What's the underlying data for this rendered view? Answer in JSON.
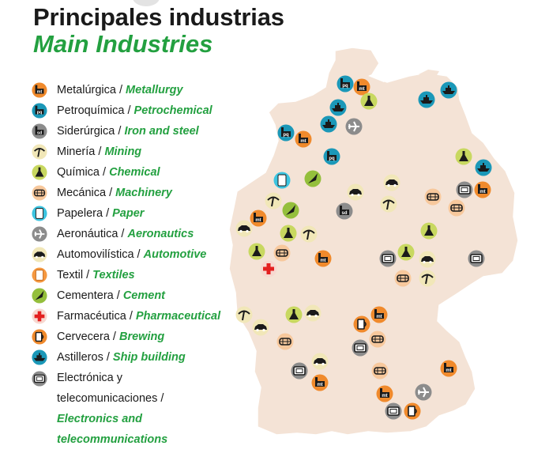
{
  "title": "Principales industrias",
  "subtitle": "Main Industries",
  "colors": {
    "accent_green": "#23a040",
    "map_fill": "#f4e3d6",
    "map_border": "#ffffff"
  },
  "legend": [
    {
      "id": "metallurgy",
      "es": "Metalúrgica",
      "en": "Metallurgy",
      "icon": "mt",
      "circle": "#f08a2c"
    },
    {
      "id": "petrochemical",
      "es": "Petroquímica",
      "en": "Petrochemical",
      "icon": "pq",
      "circle": "#1b98b8"
    },
    {
      "id": "iron",
      "es": "Siderúrgica",
      "en": "Iron and steel",
      "icon": "sd",
      "circle": "#8c8c8c"
    },
    {
      "id": "mining",
      "es": "Minería",
      "en": "Mining",
      "icon": "pick",
      "circle": "#f1e7b8"
    },
    {
      "id": "chemical",
      "es": "Química",
      "en": "Chemical",
      "icon": "flask",
      "circle": "#c8d860"
    },
    {
      "id": "machinery",
      "es": "Mecánica",
      "en": "Machinery",
      "icon": "gear",
      "circle": "#f7c89c"
    },
    {
      "id": "paper",
      "es": "Papelera",
      "en": "Paper",
      "icon": "paper",
      "circle": "#3cc4e0"
    },
    {
      "id": "aero",
      "es": "Aeronáutica",
      "en": "Aeronautics",
      "icon": "plane",
      "circle": "#8c8c8c"
    },
    {
      "id": "auto",
      "es": "Automovilística",
      "en": "Automotive",
      "icon": "car",
      "circle": "#f1e7b8"
    },
    {
      "id": "textile",
      "es": "Textil",
      "en": "Textiles",
      "icon": "textile",
      "circle": "#f59840"
    },
    {
      "id": "cement",
      "es": "Cementera",
      "en": "Cement",
      "icon": "trowel",
      "circle": "#94bf3c"
    },
    {
      "id": "pharma",
      "es": "Farmacéutica",
      "en": "Pharmaceutical",
      "icon": "cross",
      "circle": "#f7d8d0"
    },
    {
      "id": "brewing",
      "es": "Cervecera",
      "en": "Brewing",
      "icon": "beer",
      "circle": "#f08a2c"
    },
    {
      "id": "ship",
      "es": "Astilleros",
      "en": "Ship building",
      "icon": "ship",
      "circle": "#1b98b8"
    },
    {
      "id": "electronics",
      "es": "Electrónica y",
      "es2": "telecomunicaciones /",
      "en": "Electronics and",
      "en2": "telecommunications",
      "icon": "tv",
      "circle": "#8c8c8c"
    }
  ],
  "map_icons": [
    {
      "type": "pq"
    },
    {
      "type": "mt"
    },
    {
      "type": "flask"
    },
    {
      "type": "ship"
    },
    {
      "type": "ship"
    },
    {
      "type": "ship"
    },
    {
      "type": "ship"
    },
    {
      "type": "plane"
    },
    {
      "type": "pq"
    },
    {
      "type": "mt"
    },
    {
      "type": "pq"
    },
    {
      "type": "flask"
    },
    {
      "type": "ship"
    },
    {
      "type": "paper"
    },
    {
      "type": "trowel"
    },
    {
      "type": "car"
    },
    {
      "type": "car"
    },
    {
      "type": "gear"
    },
    {
      "type": "tv"
    },
    {
      "type": "mt"
    },
    {
      "type": "pick"
    },
    {
      "type": "trowel"
    },
    {
      "type": "sd"
    },
    {
      "type": "pick"
    },
    {
      "type": "gear"
    },
    {
      "type": "mt"
    },
    {
      "type": "car"
    },
    {
      "type": "flask"
    },
    {
      "type": "pick"
    },
    {
      "type": "flask"
    },
    {
      "type": "flask"
    },
    {
      "type": "gear"
    },
    {
      "type": "mt"
    },
    {
      "type": "cross"
    },
    {
      "type": "tv"
    },
    {
      "type": "flask"
    },
    {
      "type": "car"
    },
    {
      "type": "tv"
    },
    {
      "type": "gear"
    },
    {
      "type": "pick"
    },
    {
      "type": "pick"
    },
    {
      "type": "car"
    },
    {
      "type": "flask"
    },
    {
      "type": "car"
    },
    {
      "type": "gear"
    },
    {
      "type": "beer"
    },
    {
      "type": "mt"
    },
    {
      "type": "gear"
    },
    {
      "type": "tv"
    },
    {
      "type": "car"
    },
    {
      "type": "tv"
    },
    {
      "type": "mt"
    },
    {
      "type": "gear"
    },
    {
      "type": "mt"
    },
    {
      "type": "mt"
    },
    {
      "type": "plane"
    },
    {
      "type": "tv"
    },
    {
      "type": "beer"
    }
  ]
}
